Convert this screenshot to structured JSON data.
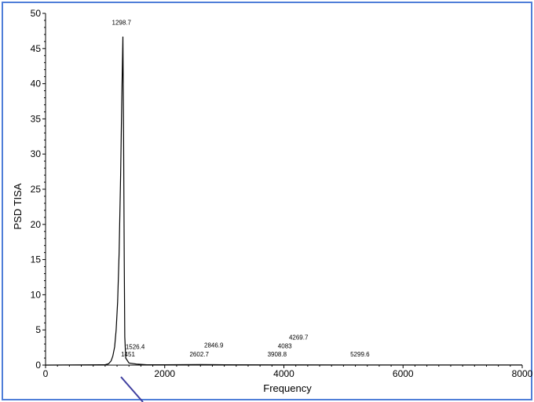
{
  "chart_data": {
    "type": "line",
    "title": "",
    "xlabel": "Frequency",
    "ylabel": "PSD TISA",
    "xlim": [
      0,
      8000
    ],
    "ylim": [
      0,
      50
    ],
    "xticks": [
      0,
      2000,
      4000,
      6000,
      8000
    ],
    "yticks": [
      0,
      5,
      10,
      15,
      20,
      25,
      30,
      35,
      40,
      45,
      50
    ],
    "xtick_labels": [
      "0",
      "2000",
      "4000",
      "6000",
      "8000"
    ],
    "ytick_labels": [
      "0",
      "5",
      "10",
      "15",
      "20",
      "25",
      "30",
      "35",
      "40",
      "45",
      "50"
    ],
    "grid": false,
    "series": [
      {
        "x": [
          0,
          1000,
          1060,
          1100,
          1130,
          1160,
          1185,
          1210,
          1235,
          1260,
          1280,
          1298.7,
          1310,
          1320,
          1330,
          1345,
          1400,
          1526.4,
          1600,
          1700,
          2000,
          2602.7,
          2846.9,
          3000,
          3908.8,
          4083,
          4269.7,
          5299.6,
          6000,
          7000,
          8000
        ],
        "y": [
          0,
          0.05,
          0.2,
          0.6,
          1.3,
          2.6,
          5,
          9,
          16,
          27,
          38,
          46.7,
          32,
          15,
          4,
          1,
          0.3,
          0.15,
          0.1,
          0.05,
          0.05,
          0.08,
          0.06,
          0.04,
          0.03,
          0.03,
          0.03,
          0.02,
          0.02,
          0.01,
          0.01
        ]
      }
    ],
    "annotations": [
      {
        "text": "1298.7",
        "x": 1298.7,
        "y": 48.4
      },
      {
        "text": "1526.4",
        "x": 1526.4,
        "y": 2.3
      },
      {
        "text": "1451",
        "x": 1451,
        "y": 1.2
      },
      {
        "text": "2846.9",
        "x": 2846.9,
        "y": 2.5
      },
      {
        "text": "2602.7",
        "x": 2602.7,
        "y": 1.2
      },
      {
        "text": "4269.7",
        "x": 4269.7,
        "y": 3.6
      },
      {
        "text": "4083",
        "x": 4083,
        "y": 2.4
      },
      {
        "text": "3908.8",
        "x": 3908.8,
        "y": 1.2
      },
      {
        "text": "5299.6",
        "x": 5299.6,
        "y": 1.2
      }
    ]
  }
}
